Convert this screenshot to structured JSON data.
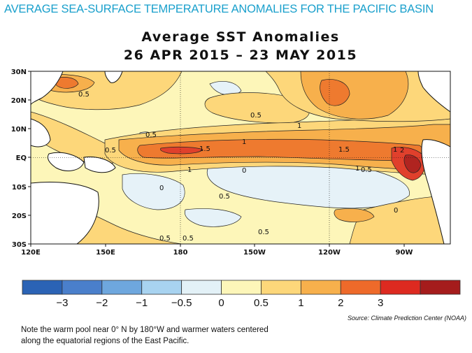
{
  "headline": "AVERAGE SEA-SURFACE TEMPERATURE ANOMALIES FOR THE PACIFIC BASIN",
  "map": {
    "title_line1": "Average SST Anomalies",
    "title_line2": "26 APR 2015 – 23 MAY 2015",
    "lat_labels": [
      "30N",
      "20N",
      "10N",
      "EQ",
      "10S",
      "20S",
      "30S"
    ],
    "lon_labels": [
      "120E",
      "150E",
      "180",
      "150W",
      "120W",
      "90W"
    ],
    "contour_labels": [
      "0.5",
      "0.5",
      "0.5",
      "1",
      "0.5",
      "1",
      "1",
      "1.5",
      "1.5",
      "1",
      "2",
      "1",
      "0.5",
      "0",
      "0.5",
      "0",
      "0",
      "0.5",
      "0.5",
      "0.5"
    ],
    "colors": {
      "land": "#ffffff",
      "neg_light": "#e6f2f8",
      "neutral": "#fdf6b9",
      "pos_0_5": "#fdd77a",
      "pos_1": "#f7b04c",
      "pos_1_5": "#ee7a2f",
      "pos_2": "#e0402c",
      "pos_3": "#b02420"
    }
  },
  "colorbar": {
    "labels": [
      "−3",
      "−2",
      "−1",
      "−0.5",
      "0",
      "0.5",
      "1",
      "2",
      "3"
    ],
    "colors": [
      "#2b63b5",
      "#4a7fcb",
      "#6ea7de",
      "#a8d3f0",
      "#e3f1f7",
      "#fdf6b9",
      "#fdd77a",
      "#f7b04c",
      "#ee6a2a",
      "#dd2a20",
      "#a51c1c"
    ]
  },
  "source": "Source: Climate Prediction Center (NOAA)",
  "caption": "Note the warm pool near 0° N by 180°W and warmer waters centered along the equatorial regions of the East Pacific."
}
